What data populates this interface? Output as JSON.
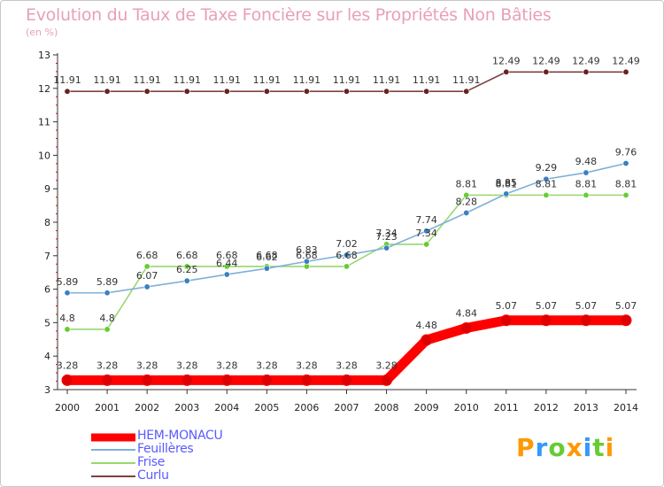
{
  "chart_data": {
    "type": "line",
    "title": "Evolution du Taux de Taxe Foncière sur les Propriétés Non Bâties",
    "unit_label": "(en %)",
    "categories": [
      "2000",
      "2001",
      "2002",
      "2003",
      "2004",
      "2005",
      "2006",
      "2007",
      "2008",
      "2009",
      "2010",
      "2011",
      "2012",
      "2013",
      "2014"
    ],
    "ylim": [
      3,
      13
    ],
    "y_ticks": [
      "3",
      "4",
      "5",
      "6",
      "7",
      "8",
      "9",
      "10",
      "11",
      "12",
      "13"
    ],
    "grid": false,
    "series": [
      {
        "name": "HEM-MONACU",
        "color": "#ff0000",
        "marker_color": "#dd0000",
        "values": [
          3.28,
          3.28,
          3.28,
          3.28,
          3.28,
          3.28,
          3.28,
          3.28,
          3.28,
          4.48,
          4.84,
          5.07,
          5.07,
          5.07,
          5.07
        ],
        "labels": [
          "3.28",
          "3.28",
          "3.28",
          "3.28",
          "3.28",
          "3.28",
          "3.28",
          "3.28",
          "3.28",
          "4.48",
          "4.84",
          "5.07",
          "5.07",
          "5.07",
          "5.07"
        ]
      },
      {
        "name": "Feuillères",
        "color": "#7fb0d8",
        "marker_color": "#3a80c0",
        "values": [
          5.89,
          5.89,
          6.07,
          6.25,
          6.44,
          6.62,
          6.83,
          7.02,
          7.23,
          7.74,
          8.28,
          8.85,
          9.29,
          9.48,
          9.76
        ],
        "labels": [
          "5.89",
          "5.89",
          "6.07",
          "6.25",
          "6.44",
          "6.62",
          "6.83",
          "7.02",
          "7.23",
          "7.74",
          "8.28",
          "8.85",
          "9.29",
          "9.48",
          "9.76"
        ]
      },
      {
        "name": "Frise",
        "color": "#98d870",
        "marker_color": "#66cc33",
        "values": [
          4.8,
          4.8,
          6.68,
          6.68,
          6.68,
          6.68,
          6.68,
          6.68,
          7.34,
          7.34,
          8.81,
          8.81,
          8.81,
          8.81,
          8.81
        ],
        "labels": [
          "4.8",
          "4.8",
          "6.68",
          "6.68",
          "6.68",
          "6.68",
          "6.68",
          "6.68",
          "7.34",
          "7.34",
          "8.81",
          "8.81",
          "8.81",
          "8.81",
          "8.81"
        ]
      },
      {
        "name": "Curlu",
        "color": "#804040",
        "marker_color": "#662222",
        "values": [
          11.91,
          11.91,
          11.91,
          11.91,
          11.91,
          11.91,
          11.91,
          11.91,
          11.91,
          11.91,
          11.91,
          12.49,
          12.49,
          12.49,
          12.49
        ],
        "labels": [
          "11.91",
          "11.91",
          "11.91",
          "11.91",
          "11.91",
          "11.91",
          "11.91",
          "11.91",
          "11.91",
          "11.91",
          "11.91",
          "12.49",
          "12.49",
          "12.49",
          "12.49"
        ]
      }
    ]
  },
  "legend": {
    "items": [
      {
        "label": "HEM-MONACU",
        "color": "#ff0000"
      },
      {
        "label": "Feuillères",
        "color": "#7fb0d8"
      },
      {
        "label": "Frise",
        "color": "#98d870"
      },
      {
        "label": "Curlu",
        "color": "#804040"
      }
    ],
    "text_color": "#5a5aff"
  },
  "brand": {
    "letters": [
      "P",
      "r",
      "o",
      "x",
      "i",
      "t",
      "i"
    ],
    "colors": [
      "#ff9900",
      "#3399ff",
      "#66cc33",
      "#ff9900",
      "#3399ff",
      "#66cc33",
      "#ff9900"
    ]
  }
}
